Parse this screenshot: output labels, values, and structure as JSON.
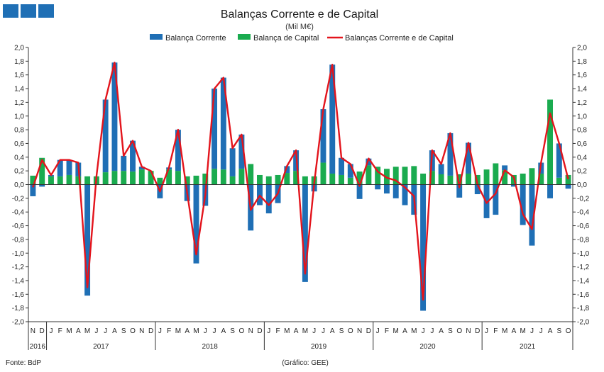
{
  "brand": {
    "logo_color": "#1f6fb5"
  },
  "footer": {
    "source": "Fonte: BdP",
    "credit": "(Gráfico: GEE)"
  },
  "chart_data": {
    "type": "bar",
    "title": "Balanças Corrente e de Capital",
    "subtitle": "(Mil M€)",
    "ylim": [
      -2.0,
      2.0
    ],
    "yticks": [
      "2,0",
      "1,8",
      "1,6",
      "1,4",
      "1,2",
      "1,0",
      "0,8",
      "0,6",
      "0,4",
      "0,2",
      "0,0",
      "-0,2",
      "-0,4",
      "-0,6",
      "-0,8",
      "-1,0",
      "-1,2",
      "-1,4",
      "-1,6",
      "-1,8",
      "-2,0"
    ],
    "legend_position": "top",
    "stacked": true,
    "categories": [
      "N",
      "D",
      "J",
      "F",
      "M",
      "A",
      "M",
      "J",
      "J",
      "A",
      "S",
      "O",
      "N",
      "D",
      "J",
      "F",
      "M",
      "A",
      "M",
      "J",
      "J",
      "A",
      "S",
      "O",
      "N",
      "D",
      "J",
      "F",
      "M",
      "A",
      "M",
      "J",
      "J",
      "A",
      "S",
      "O",
      "N",
      "D",
      "J",
      "F",
      "M",
      "A",
      "M",
      "J",
      "J",
      "A",
      "S",
      "O",
      "N",
      "D",
      "J",
      "F",
      "M",
      "A",
      "M",
      "J",
      "J",
      "A",
      "S",
      "O"
    ],
    "years": [
      {
        "label": "2016",
        "start": 0,
        "end": 1
      },
      {
        "label": "2017",
        "start": 2,
        "end": 13
      },
      {
        "label": "2018",
        "start": 14,
        "end": 25
      },
      {
        "label": "2019",
        "start": 26,
        "end": 37
      },
      {
        "label": "2020",
        "start": 38,
        "end": 49
      },
      {
        "label": "2021",
        "start": 50,
        "end": 59
      }
    ],
    "series": [
      {
        "name": "Balança Corrente",
        "kind": "bar",
        "color": "#1f6fb5",
        "values": [
          -0.17,
          -0.03,
          0.02,
          0.24,
          0.22,
          0.2,
          -1.62,
          0.0,
          1.06,
          1.58,
          0.22,
          0.45,
          0.04,
          0.0,
          -0.2,
          0.03,
          0.6,
          -0.24,
          -1.15,
          -0.31,
          1.17,
          1.34,
          0.41,
          0.5,
          -0.67,
          -0.3,
          -0.42,
          -0.27,
          0.1,
          0.3,
          -1.42,
          -0.1,
          0.78,
          1.59,
          0.25,
          0.2,
          -0.21,
          0.1,
          -0.07,
          -0.13,
          -0.2,
          -0.3,
          -0.44,
          -1.84,
          0.3,
          0.15,
          0.62,
          -0.19,
          0.45,
          -0.14,
          -0.49,
          -0.44,
          0.07,
          -0.03,
          -0.59,
          -0.89,
          0.16,
          -0.2,
          0.5,
          -0.06
        ]
      },
      {
        "name": "Balança de Capital",
        "kind": "bar",
        "color": "#1aab4f",
        "values": [
          0.13,
          0.39,
          0.12,
          0.12,
          0.14,
          0.12,
          0.12,
          0.12,
          0.18,
          0.2,
          0.2,
          0.19,
          0.22,
          0.2,
          0.1,
          0.22,
          0.2,
          0.12,
          0.13,
          0.16,
          0.23,
          0.22,
          0.12,
          0.23,
          0.3,
          0.14,
          0.12,
          0.14,
          0.17,
          0.2,
          0.12,
          0.12,
          0.32,
          0.16,
          0.14,
          0.1,
          0.19,
          0.28,
          0.26,
          0.23,
          0.26,
          0.26,
          0.27,
          0.16,
          0.2,
          0.15,
          0.13,
          0.15,
          0.16,
          0.14,
          0.22,
          0.31,
          0.21,
          0.14,
          0.16,
          0.24,
          0.16,
          1.24,
          0.1,
          0.14
        ]
      },
      {
        "name": "Balanças Corrente e de Capital",
        "kind": "line",
        "color": "#e3141c",
        "values": [
          -0.04,
          0.36,
          0.14,
          0.36,
          0.36,
          0.32,
          -1.5,
          0.12,
          1.24,
          1.78,
          0.42,
          0.64,
          0.26,
          0.2,
          -0.1,
          0.25,
          0.8,
          -0.12,
          -1.02,
          -0.15,
          1.4,
          1.56,
          0.53,
          0.73,
          -0.37,
          -0.16,
          -0.3,
          -0.13,
          0.27,
          0.5,
          -1.3,
          0.02,
          1.1,
          1.75,
          0.39,
          0.3,
          -0.02,
          0.38,
          0.19,
          0.1,
          0.06,
          -0.04,
          -0.17,
          -1.68,
          0.5,
          0.3,
          0.75,
          -0.04,
          0.61,
          0.0,
          -0.27,
          -0.13,
          0.21,
          0.11,
          -0.43,
          -0.65,
          0.32,
          1.04,
          0.6,
          0.08
        ]
      }
    ]
  }
}
